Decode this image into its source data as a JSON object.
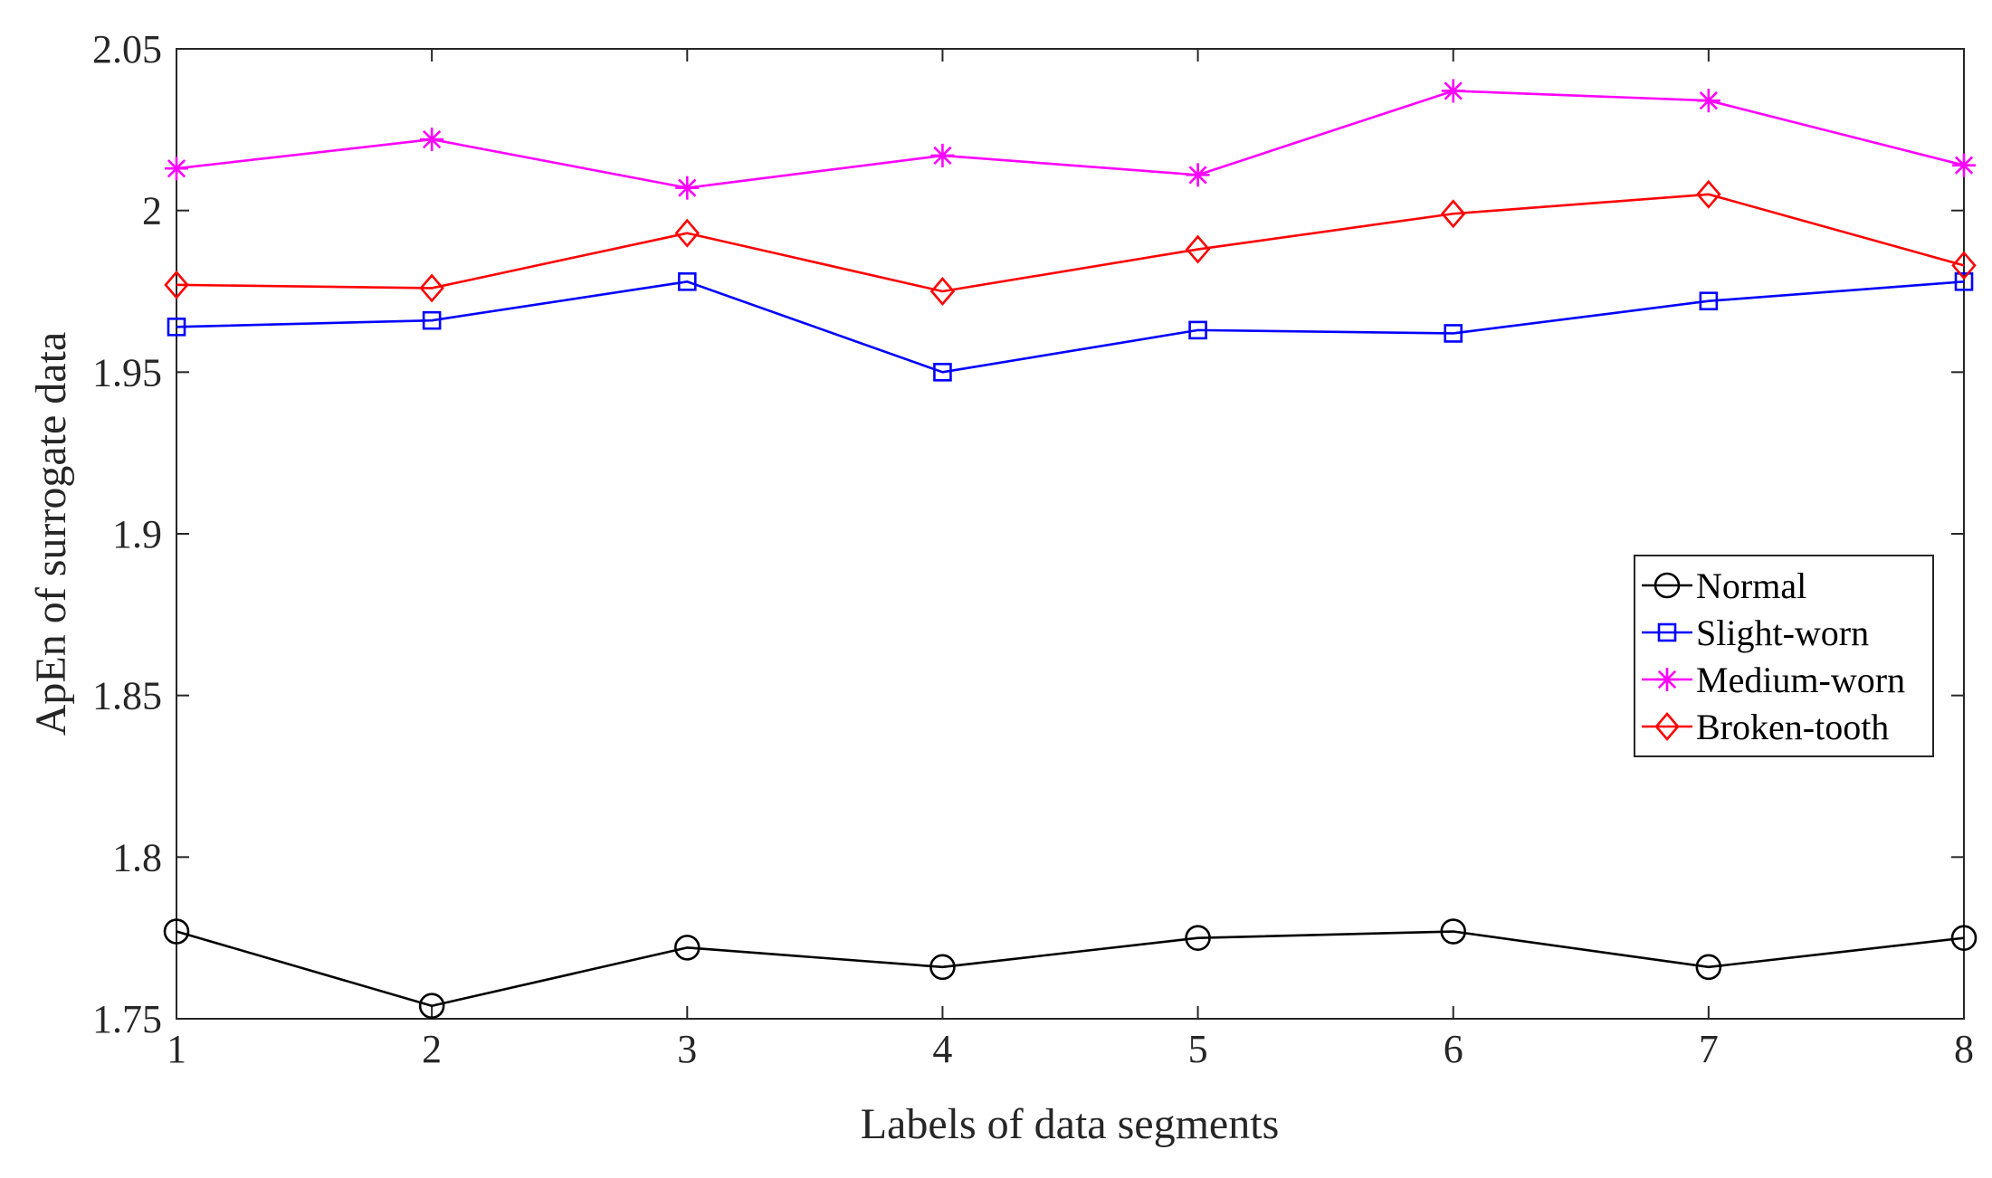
{
  "chart_data": {
    "type": "line",
    "title": "",
    "xlabel": "Labels of data segments",
    "ylabel": "ApEn of surrogate data",
    "xlim": [
      1,
      8
    ],
    "ylim": [
      1.75,
      2.05
    ],
    "x": [
      1,
      2,
      3,
      4,
      5,
      6,
      7,
      8
    ],
    "xticks": [
      {
        "value": 1,
        "label": "1"
      },
      {
        "value": 2,
        "label": "2"
      },
      {
        "value": 3,
        "label": "3"
      },
      {
        "value": 4,
        "label": "4"
      },
      {
        "value": 5,
        "label": "5"
      },
      {
        "value": 6,
        "label": "6"
      },
      {
        "value": 7,
        "label": "7"
      },
      {
        "value": 8,
        "label": "8"
      }
    ],
    "yticks": [
      {
        "value": 1.75,
        "label": "1.75"
      },
      {
        "value": 1.8,
        "label": "1.8"
      },
      {
        "value": 1.85,
        "label": "1.85"
      },
      {
        "value": 1.9,
        "label": "1.9"
      },
      {
        "value": 1.95,
        "label": "1.95"
      },
      {
        "value": 2.0,
        "label": "2"
      },
      {
        "value": 2.05,
        "label": "2.05"
      }
    ],
    "grid": false,
    "legend_position": "right-middle",
    "series": [
      {
        "name": "Normal",
        "color": "#000000",
        "marker": "circle",
        "values": [
          1.777,
          1.754,
          1.772,
          1.766,
          1.775,
          1.777,
          1.766,
          1.775
        ]
      },
      {
        "name": "Slight-worn",
        "color": "#0000ff",
        "marker": "square",
        "values": [
          1.964,
          1.966,
          1.978,
          1.95,
          1.963,
          1.962,
          1.972,
          1.978
        ]
      },
      {
        "name": "Medium-worn",
        "color": "#ff00ff",
        "marker": "asterisk",
        "values": [
          2.013,
          2.022,
          2.007,
          2.017,
          2.011,
          2.037,
          2.034,
          2.014
        ]
      },
      {
        "name": "Broken-tooth",
        "color": "#ff0000",
        "marker": "diamond",
        "values": [
          1.977,
          1.976,
          1.993,
          1.975,
          1.988,
          1.999,
          2.005,
          1.983
        ]
      }
    ]
  }
}
